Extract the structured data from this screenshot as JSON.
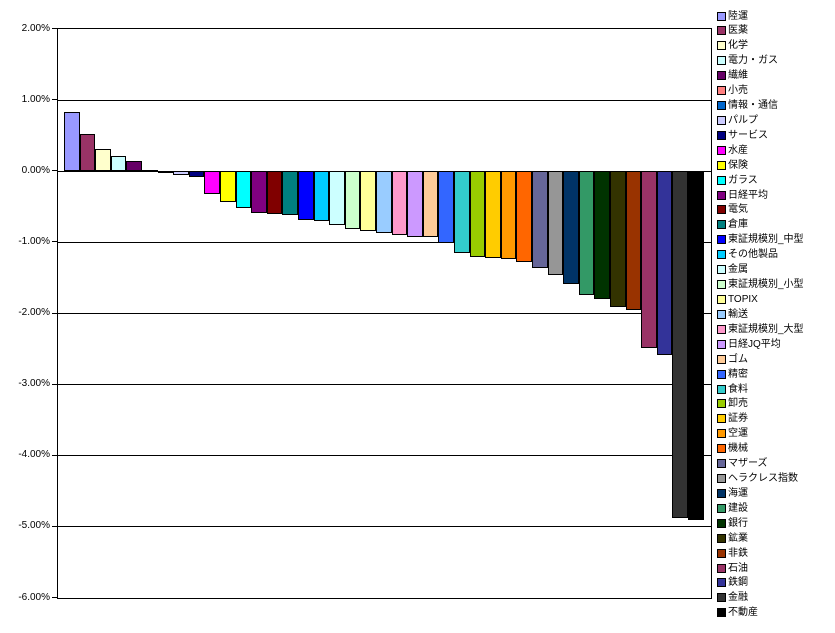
{
  "chart_data": {
    "type": "bar",
    "orientation": "vertical",
    "title": "",
    "xlabel": "",
    "ylabel": "",
    "unit": "%",
    "ylim": [
      -6,
      2
    ],
    "ytick_step": 1,
    "grid": true,
    "plot_background": "#FFFFFF",
    "axis_color": "#000000",
    "legend_position": "right",
    "ytick_labels": [
      "2.00%",
      "1.00%",
      "0.00%",
      "-1.00%",
      "-2.00%",
      "-3.00%",
      "-4.00%",
      "-5.00%",
      "-6.00%"
    ],
    "series": [
      {
        "name": "陸運",
        "value": 0.83,
        "color": "#9999FF"
      },
      {
        "name": "医薬",
        "value": 0.52,
        "color": "#993366"
      },
      {
        "name": "化学",
        "value": 0.31,
        "color": "#FFFFCC"
      },
      {
        "name": "電力・ガス",
        "value": 0.22,
        "color": "#CCFFFF"
      },
      {
        "name": "繊維",
        "value": 0.15,
        "color": "#660066"
      },
      {
        "name": "小売",
        "value": 0.01,
        "color": "#FF8080"
      },
      {
        "name": "情報・通信",
        "value": -0.03,
        "color": "#0066CC"
      },
      {
        "name": "パルプ",
        "value": -0.05,
        "color": "#CCCCFF"
      },
      {
        "name": "サービス",
        "value": -0.08,
        "color": "#000080"
      },
      {
        "name": "水産",
        "value": -0.32,
        "color": "#FF00FF"
      },
      {
        "name": "保険",
        "value": -0.43,
        "color": "#FFFF00"
      },
      {
        "name": "ガラス",
        "value": -0.51,
        "color": "#00FFFF"
      },
      {
        "name": "日経平均",
        "value": -0.58,
        "color": "#800080"
      },
      {
        "name": "電気",
        "value": -0.6,
        "color": "#800000"
      },
      {
        "name": "倉庫",
        "value": -0.62,
        "color": "#008080"
      },
      {
        "name": "東証規模別_中型",
        "value": -0.68,
        "color": "#0000FF"
      },
      {
        "name": "その他製品",
        "value": -0.7,
        "color": "#00CCFF"
      },
      {
        "name": "金属",
        "value": -0.75,
        "color": "#CCFFFF"
      },
      {
        "name": "東証規模別_小型",
        "value": -0.81,
        "color": "#CCFFCC"
      },
      {
        "name": "TOPIX",
        "value": -0.84,
        "color": "#FFFF99"
      },
      {
        "name": "輸送",
        "value": -0.87,
        "color": "#99CCFF"
      },
      {
        "name": "東証規模別_大型",
        "value": -0.89,
        "color": "#FF99CC"
      },
      {
        "name": "日経JQ平均",
        "value": -0.92,
        "color": "#CC99FF"
      },
      {
        "name": "ゴム",
        "value": -0.93,
        "color": "#FFCC99"
      },
      {
        "name": "精密",
        "value": -1.01,
        "color": "#3366FF"
      },
      {
        "name": "食料",
        "value": -1.15,
        "color": "#33CCCC"
      },
      {
        "name": "卸売",
        "value": -1.2,
        "color": "#99CC00"
      },
      {
        "name": "証券",
        "value": -1.22,
        "color": "#FFCC00"
      },
      {
        "name": "空運",
        "value": -1.23,
        "color": "#FF9900"
      },
      {
        "name": "機械",
        "value": -1.28,
        "color": "#FF6600"
      },
      {
        "name": "マザーズ",
        "value": -1.36,
        "color": "#666699"
      },
      {
        "name": "ヘラクレス指数",
        "value": -1.46,
        "color": "#969696"
      },
      {
        "name": "海運",
        "value": -1.59,
        "color": "#003366"
      },
      {
        "name": "建設",
        "value": -1.74,
        "color": "#339966"
      },
      {
        "name": "銀行",
        "value": -1.79,
        "color": "#003300"
      },
      {
        "name": "鉱業",
        "value": -1.91,
        "color": "#333300"
      },
      {
        "name": "非鉄",
        "value": -1.95,
        "color": "#993300"
      },
      {
        "name": "石油",
        "value": -2.49,
        "color": "#993366"
      },
      {
        "name": "鉄鋼",
        "value": -2.59,
        "color": "#333399"
      },
      {
        "name": "金融",
        "value": -4.88,
        "color": "#333333"
      },
      {
        "name": "不動産",
        "value": -4.91,
        "color": "#000000"
      }
    ]
  }
}
